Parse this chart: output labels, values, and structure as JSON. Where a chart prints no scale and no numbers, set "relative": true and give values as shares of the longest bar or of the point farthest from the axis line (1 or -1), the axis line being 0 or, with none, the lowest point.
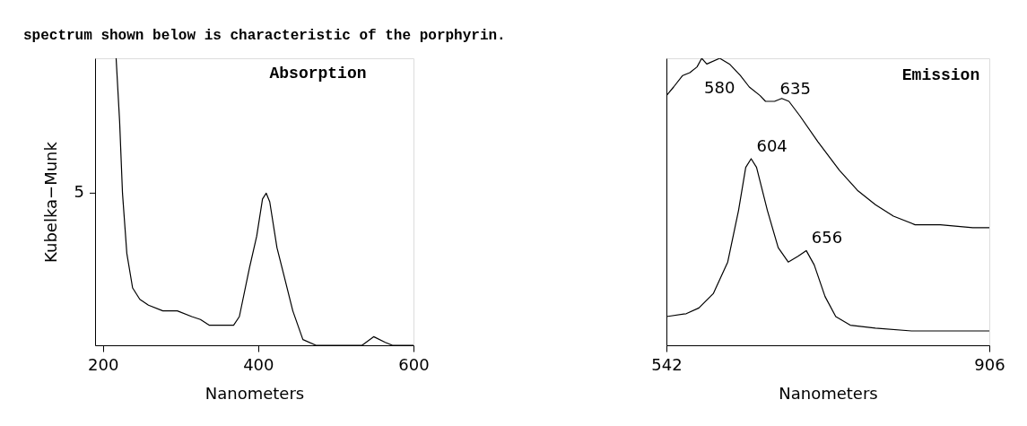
{
  "chart_data": [
    {
      "type": "line",
      "title": "Absorption",
      "xlabel": "Nanometers",
      "ylabel": "Kubelka−Munk",
      "relative": true,
      "xlim": [
        190,
        600
      ],
      "xticks": [
        200,
        400,
        600
      ],
      "grid": false,
      "marker": "none",
      "line_style": "solid",
      "annotations": [
        "spectrum shown below is characteristic of the porphyrin.",
        "5"
      ],
      "series": [
        {
          "color": "#000000",
          "x": [
            217.1,
            221.6,
            225.3,
            230.9,
            238.3,
            247.6,
            258.7,
            277.3,
            295.9,
            314.5,
            325.7,
            336.8,
            355.4,
            368.4,
            375.8,
            388.8,
            398.1,
            405.6,
            410.4,
            414.9,
            424.2,
            433.5,
            444.6,
            457.6,
            474.4,
            533.8,
            548.7,
            563.6,
            572.9,
            600
          ],
          "values": [
            1.0,
            0.78,
            0.53,
            0.32,
            0.2,
            0.16,
            0.14,
            0.12,
            0.12,
            0.1,
            0.09,
            0.07,
            0.07,
            0.07,
            0.1,
            0.27,
            0.38,
            0.51,
            0.53,
            0.5,
            0.34,
            0.24,
            0.12,
            0.02,
            0.0,
            0.0,
            0.03,
            0.01,
            0.0,
            0.0
          ]
        }
      ]
    },
    {
      "type": "line",
      "title": "Emission",
      "xlabel": "Nanometers",
      "relative": true,
      "xlim": [
        542,
        906
      ],
      "xticks": [
        542,
        906
      ],
      "grid": false,
      "marker": "none",
      "line_style": "solid",
      "annotations": [
        {
          "text": "580",
          "x": 625.3,
          "y": 0.94
        },
        {
          "text": "635",
          "x": 663.9,
          "y": 0.85
        },
        {
          "text": "604",
          "x": 637.5,
          "y": 0.65
        },
        {
          "text": "656",
          "x": 699.6,
          "y": 0.33
        }
      ],
      "series": [
        {
          "color": "#000000",
          "x": [
            542,
            550.1,
            560.3,
            568.4,
            576.5,
            581.8,
            587.5,
            602.1,
            613.1,
            625.3,
            635.4,
            647.6,
            653.7,
            663.9,
            672.0,
            680.1,
            692.3,
            712.6,
            737.0,
            757.3,
            777.6,
            797.9,
            822.3,
            850.8,
            887.3,
            906
          ],
          "values": [
            0.87,
            0.9,
            0.94,
            0.95,
            0.97,
            1.0,
            0.98,
            1.0,
            0.98,
            0.94,
            0.9,
            0.87,
            0.85,
            0.85,
            0.86,
            0.85,
            0.8,
            0.71,
            0.61,
            0.54,
            0.49,
            0.45,
            0.42,
            0.42,
            0.41,
            0.41
          ]
        },
        {
          "color": "#000000",
          "x": [
            542,
            564.3,
            578.6,
            594.8,
            611.1,
            623.3,
            631.4,
            637.5,
            643.6,
            655.8,
            668.0,
            679.3,
            690.3,
            699.6,
            708.6,
            720.8,
            732.9,
            749.2,
            777.6,
            818.3,
            906
          ],
          "values": [
            0.1,
            0.11,
            0.13,
            0.18,
            0.29,
            0.47,
            0.62,
            0.65,
            0.62,
            0.47,
            0.34,
            0.29,
            0.31,
            0.33,
            0.28,
            0.17,
            0.1,
            0.07,
            0.06,
            0.05,
            0.05
          ]
        }
      ]
    }
  ]
}
